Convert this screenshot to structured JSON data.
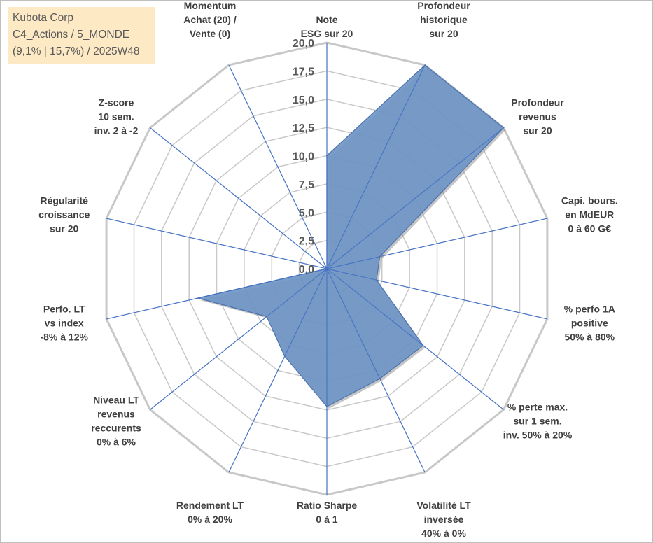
{
  "title_box": {
    "line1": "Kubota Corp",
    "line2": "C4_Actions / 5_MONDE",
    "line3": "(9,1% | 15,7%) / 2025W48"
  },
  "colors": {
    "fill": "#6f95c6",
    "stroke": "#4a72b0",
    "spoke": "#4472c4",
    "grid": "#c8c8c8",
    "frame": "#bfbfbf",
    "title_bg": "#fde9c4"
  },
  "chart_data": {
    "type": "radar",
    "title": "Kubota Corp",
    "rmin": 0,
    "rmax": 20,
    "ticks": [
      "0,0",
      "2,5",
      "5,0",
      "7,5",
      "10,0",
      "12,5",
      "15,0",
      "17,5",
      "20,0"
    ],
    "axes": [
      {
        "label": [
          "Note",
          "ESG sur 20"
        ],
        "value": 10.0
      },
      {
        "label": [
          "Profondeur",
          "historique",
          "sur 20"
        ],
        "value": 20.0
      },
      {
        "label": [
          "Profondeur",
          "revenus",
          "sur 20"
        ],
        "value": 20.0
      },
      {
        "label": [
          "Capi. bours.",
          "en MdEUR",
          "0 à 60 G€"
        ],
        "value": 4.8
      },
      {
        "label": [
          "% perfo 1A",
          "positive",
          "50% à 80%"
        ],
        "value": 4.5
      },
      {
        "label": [
          "% perte max.",
          "sur 1 sem.",
          "inv. 50% à 20%"
        ],
        "value": 10.9
      },
      {
        "label": [
          "Volatilité LT",
          "inversée",
          "40% à 0%"
        ],
        "value": 10.8
      },
      {
        "label": [
          "Ratio Sharpe",
          "0 à 1"
        ],
        "value": 12.2
      },
      {
        "label": [
          "Rendement LT",
          "0% à 20%"
        ],
        "value": 8.6
      },
      {
        "label": [
          "Niveau LT",
          "revenus",
          "reccurents",
          "0% à 6%"
        ],
        "value": 6.8
      },
      {
        "label": [
          "Perfo. LT",
          "vs index",
          "-8% à 12%"
        ],
        "value": 11.7
      },
      {
        "label": [
          "Régularité",
          "croissance",
          "sur 20"
        ],
        "value": 0
      },
      {
        "label": [
          "Z-score",
          "10 sem.",
          "inv. 2 à -2"
        ],
        "value": 0
      },
      {
        "label": [
          "Momentum",
          "Achat (20) /",
          "Vente (0)"
        ],
        "value": 0
      }
    ]
  }
}
